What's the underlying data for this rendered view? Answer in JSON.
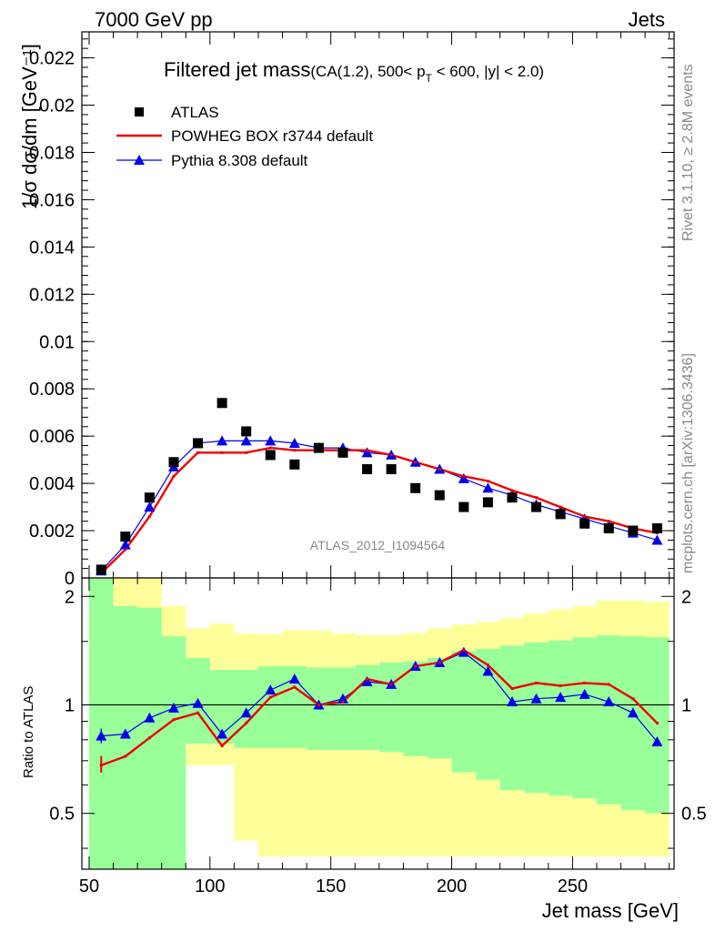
{
  "header": {
    "left": "7000 GeV pp",
    "right": "Jets"
  },
  "side_labels": {
    "rivet": "Rivet 3.1.10, ≥ 2.8M events",
    "mcplots": "mcplots.cern.ch [arXiv:1306.3436]"
  },
  "chart_data": [
    {
      "type": "scatter",
      "panel": "main",
      "title": "Filtered jet mass",
      "subtitle": "(CA(1.2), 500< p_T < 600, |y| < 2.0)",
      "title_parts": {
        "main": "Filtered jet mass",
        "pre": "(CA(1.2), 500< p",
        "sub": "T",
        "post": " < 600, |y| < 2.0)"
      },
      "ylabel": "1/σ dσ/dm [GeV⁻¹]",
      "watermark": "ATLAS_2012_I1094564",
      "xlim": [
        47,
        292
      ],
      "ylim": [
        0,
        0.0231
      ],
      "y_ticks": [
        0,
        0.002,
        0.004,
        0.006,
        0.008,
        0.01,
        0.012,
        0.014,
        0.016,
        0.018,
        0.02,
        0.022
      ],
      "y_tick_labels": [
        "0",
        "0.002",
        "0.004",
        "0.006",
        "0.008",
        "0.01",
        "0.012",
        "0.014",
        "0.016",
        "0.018",
        "0.02",
        "0.022"
      ],
      "legend_position": "top-left",
      "x": [
        55,
        65,
        75,
        85,
        95,
        105,
        115,
        125,
        135,
        145,
        155,
        165,
        175,
        185,
        195,
        205,
        215,
        225,
        235,
        245,
        255,
        265,
        275,
        285
      ],
      "series": [
        {
          "name": "ATLAS",
          "style": "black-squares",
          "color": "#000000",
          "values": [
            0.00035,
            0.00175,
            0.0034,
            0.0049,
            0.0057,
            0.0074,
            0.0062,
            0.0052,
            0.0048,
            0.0055,
            0.0053,
            0.0046,
            0.0046,
            0.0038,
            0.0035,
            0.003,
            0.0032,
            0.0034,
            0.003,
            0.0027,
            0.0023,
            0.0021,
            0.002,
            0.0021
          ]
        },
        {
          "name": "POWHEG BOX r3744 default",
          "style": "red-line",
          "color": "#ee0000",
          "values": [
            0.0002,
            0.0012,
            0.0026,
            0.0043,
            0.0053,
            0.0053,
            0.0053,
            0.0055,
            0.0054,
            0.0054,
            0.0054,
            0.0054,
            0.0052,
            0.0049,
            0.0046,
            0.0043,
            0.0041,
            0.0037,
            0.0034,
            0.003,
            0.0026,
            0.0024,
            0.0021,
            0.0019
          ]
        },
        {
          "name": "Pythia 8.308 default",
          "style": "blue-triangles",
          "color": "#0000ee",
          "values": [
            0.0003,
            0.0014,
            0.003,
            0.0047,
            0.0057,
            0.0058,
            0.0058,
            0.0058,
            0.0057,
            0.0055,
            0.0055,
            0.0053,
            0.0052,
            0.0049,
            0.0046,
            0.0042,
            0.0038,
            0.0035,
            0.0031,
            0.0028,
            0.0025,
            0.0022,
            0.0019,
            0.0016
          ]
        }
      ]
    },
    {
      "type": "line",
      "panel": "ratio",
      "xlabel": "Jet mass [GeV]",
      "ylabel": "Ratio to ATLAS",
      "xlim": [
        47,
        292
      ],
      "ylim": [
        0.35,
        2.25
      ],
      "x_ticks": [
        50,
        100,
        150,
        200,
        250
      ],
      "x_tick_labels": [
        "50",
        "100",
        "150",
        "200",
        "250"
      ],
      "y_ticks": [
        0.5,
        1,
        2
      ],
      "y_tick_labels": [
        "0.5",
        "1",
        "2"
      ],
      "bin_edges": [
        50,
        60,
        70,
        80,
        90,
        100,
        110,
        120,
        130,
        140,
        150,
        160,
        170,
        180,
        190,
        200,
        210,
        220,
        230,
        240,
        250,
        260,
        270,
        280,
        290
      ],
      "band_inner": {
        "color": "#99ff99",
        "lo": [
          0.35,
          0.35,
          0.35,
          0.35,
          0.78,
          0.78,
          0.76,
          0.76,
          0.76,
          0.75,
          0.75,
          0.75,
          0.74,
          0.72,
          0.71,
          0.65,
          0.62,
          0.58,
          0.57,
          0.56,
          0.55,
          0.53,
          0.51,
          0.5
        ],
        "hi": [
          2.25,
          1.88,
          1.86,
          1.55,
          1.35,
          1.25,
          1.25,
          1.28,
          1.28,
          1.27,
          1.27,
          1.29,
          1.31,
          1.32,
          1.35,
          1.41,
          1.43,
          1.46,
          1.49,
          1.51,
          1.54,
          1.56,
          1.55,
          1.54
        ]
      },
      "band_outer": {
        "color": "#ffff99",
        "lo": [
          0.35,
          0.35,
          0.35,
          0.35,
          0.68,
          0.68,
          0.42,
          0.38,
          0.38,
          0.38,
          0.38,
          0.38,
          0.38,
          0.38,
          0.38,
          0.38,
          0.38,
          0.38,
          0.38,
          0.38,
          0.38,
          0.38,
          0.38,
          0.38
        ],
        "hi": [
          2.25,
          2.25,
          2.25,
          1.88,
          1.63,
          1.68,
          1.58,
          1.57,
          1.61,
          1.61,
          1.58,
          1.56,
          1.56,
          1.58,
          1.63,
          1.67,
          1.7,
          1.74,
          1.79,
          1.84,
          1.88,
          1.95,
          1.95,
          1.93
        ]
      },
      "x": [
        55,
        65,
        75,
        85,
        95,
        105,
        115,
        125,
        135,
        145,
        155,
        165,
        175,
        185,
        195,
        205,
        215,
        225,
        235,
        245,
        255,
        265,
        275,
        285
      ],
      "series": [
        {
          "name": "POWHEG BOX r3744 default",
          "color": "#ee0000",
          "values": [
            0.68,
            0.72,
            0.81,
            0.91,
            0.95,
            0.77,
            0.89,
            1.05,
            1.12,
            1.0,
            1.02,
            1.18,
            1.14,
            1.28,
            1.31,
            1.42,
            1.29,
            1.11,
            1.15,
            1.13,
            1.15,
            1.14,
            1.04,
            0.89
          ]
        },
        {
          "name": "Pythia 8.308 default",
          "color": "#0000ee",
          "values": [
            0.82,
            0.83,
            0.92,
            0.98,
            1.01,
            0.83,
            0.95,
            1.1,
            1.18,
            1.0,
            1.04,
            1.16,
            1.14,
            1.28,
            1.31,
            1.4,
            1.24,
            1.02,
            1.04,
            1.05,
            1.07,
            1.02,
            0.95,
            0.79
          ]
        }
      ]
    }
  ]
}
